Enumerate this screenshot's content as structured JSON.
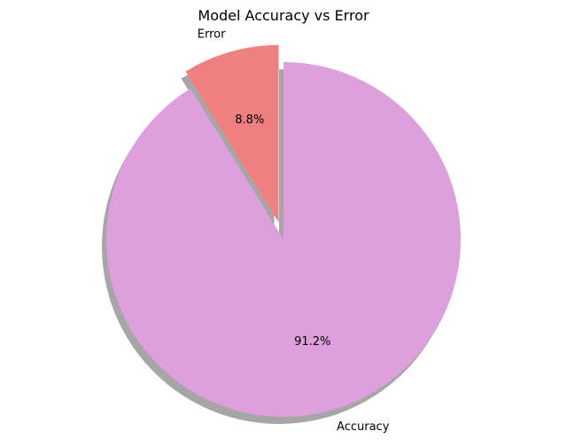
{
  "chart_data": {
    "type": "pie",
    "title": "Model Accuracy vs Error",
    "slices": [
      {
        "label": "Accuracy",
        "value": 91.2,
        "percent_label": "91.2%",
        "color": "#dda0dd",
        "exploded": false
      },
      {
        "label": "Error",
        "value": 8.8,
        "percent_label": "8.8%",
        "color": "#f08080",
        "exploded": true
      }
    ],
    "start_angle_deg": 90,
    "direction": "clockwise",
    "shadow": true
  }
}
